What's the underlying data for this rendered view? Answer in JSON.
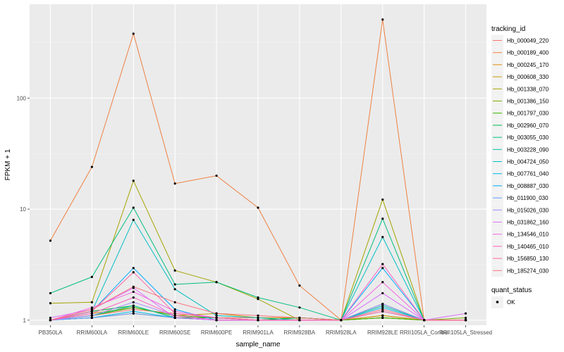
{
  "chart_data": {
    "type": "line",
    "xlabel": "sample_name",
    "ylabel": "FPKM + 1",
    "y_scale": "log10",
    "ylim": [
      0.9,
      700
    ],
    "yticks": [
      1,
      10,
      100
    ],
    "ytick_labels": [
      "1",
      "10",
      "100"
    ],
    "grid": true,
    "legend_position": "right",
    "categories": [
      "PB350LA",
      "RRIM600LA",
      "RRIM600LE",
      "RRIM600SE",
      "RRIM600PE",
      "RRIM901LA",
      "RRIM928BA",
      "RRIM928LA",
      "RRIM928LE",
      "RRII105LA_Control",
      "RRII105LA_Stressed"
    ],
    "legend_title": "tracking_id",
    "series": [
      {
        "name": "Hb_000049_220",
        "color": "#F8766D",
        "values": [
          1.0,
          1.1,
          1.25,
          1.15,
          1.05,
          1.05,
          1.05,
          1.0,
          1.1,
          1.0,
          1.0
        ]
      },
      {
        "name": "Hb_000189_400",
        "color": "#EE8042",
        "values": [
          5.2,
          24,
          380,
          17,
          20,
          10.3,
          2.05,
          1.0,
          510,
          1.0,
          1.0
        ]
      },
      {
        "name": "Hb_000245_170",
        "color": "#DE8C00",
        "values": [
          1.0,
          1.05,
          1.15,
          1.05,
          1.05,
          1.0,
          1.05,
          1.0,
          1.05,
          1.0,
          1.0
        ]
      },
      {
        "name": "Hb_000608_330",
        "color": "#C49A00",
        "values": [
          1.0,
          1.15,
          1.3,
          1.1,
          1.15,
          1.05,
          1.05,
          1.0,
          1.1,
          1.0,
          1.0
        ]
      },
      {
        "name": "Hb_001338_070",
        "color": "#A3A500",
        "values": [
          1.42,
          1.45,
          18,
          2.8,
          2.2,
          1.55,
          1.0,
          1.0,
          12.2,
          1.0,
          1.0
        ]
      },
      {
        "name": "Hb_001386_150",
        "color": "#7CAE00",
        "values": [
          1.0,
          1.2,
          1.35,
          1.05,
          1.05,
          1.0,
          1.0,
          1.0,
          1.05,
          1.0,
          1.05
        ]
      },
      {
        "name": "Hb_001797_030",
        "color": "#39B600",
        "values": [
          1.0,
          1.1,
          1.3,
          1.1,
          1.05,
          1.0,
          1.05,
          1.0,
          1.05,
          1.0,
          1.0
        ]
      },
      {
        "name": "Hb_002960_070",
        "color": "#00BB4E",
        "values": [
          1.0,
          1.2,
          1.35,
          1.05,
          1.05,
          1.0,
          1.05,
          1.0,
          1.4,
          1.0,
          1.0
        ]
      },
      {
        "name": "Hb_003055_030",
        "color": "#00BF7D",
        "values": [
          1.75,
          2.45,
          10.3,
          2.1,
          2.2,
          1.6,
          1.3,
          1.0,
          8.2,
          1.0,
          1.0
        ]
      },
      {
        "name": "Hb_003228_090",
        "color": "#00C1A3",
        "values": [
          1.0,
          1.1,
          1.35,
          1.05,
          1.0,
          1.0,
          1.0,
          1.0,
          1.35,
          1.0,
          1.0
        ]
      },
      {
        "name": "Hb_004724_050",
        "color": "#00BFC4",
        "values": [
          1.0,
          1.2,
          8.0,
          1.9,
          1.1,
          1.05,
          1.0,
          1.0,
          5.6,
          1.0,
          1.0
        ]
      },
      {
        "name": "Hb_007761_040",
        "color": "#00B8E5",
        "values": [
          1.0,
          1.05,
          1.2,
          1.05,
          1.0,
          1.0,
          1.0,
          1.0,
          1.3,
          1.0,
          1.0
        ]
      },
      {
        "name": "Hb_008887_030",
        "color": "#00ABFD",
        "values": [
          1.0,
          1.2,
          2.95,
          1.25,
          1.0,
          1.0,
          1.0,
          1.0,
          2.95,
          1.0,
          1.0
        ]
      },
      {
        "name": "Hb_011900_030",
        "color": "#619CFF",
        "values": [
          1.0,
          1.05,
          1.15,
          1.05,
          1.0,
          1.0,
          1.0,
          1.0,
          1.2,
          1.0,
          1.0
        ]
      },
      {
        "name": "Hb_015026_030",
        "color": "#A58AFF",
        "values": [
          1.0,
          1.1,
          1.45,
          1.1,
          1.0,
          1.0,
          1.0,
          1.0,
          1.4,
          1.0,
          1.0
        ]
      },
      {
        "name": "Hb_031862_160",
        "color": "#DB72FB",
        "values": [
          1.05,
          1.25,
          1.95,
          1.05,
          1.0,
          1.0,
          1.0,
          1.0,
          1.75,
          1.0,
          1.15
        ]
      },
      {
        "name": "Hb_134546_010",
        "color": "#F564E3",
        "values": [
          1.0,
          1.3,
          1.8,
          1.2,
          1.05,
          1.0,
          1.0,
          1.0,
          2.2,
          1.0,
          1.0
        ]
      },
      {
        "name": "Hb_140465_010",
        "color": "#FF61C3",
        "values": [
          1.0,
          1.15,
          1.6,
          1.1,
          1.0,
          1.0,
          1.0,
          1.0,
          3.2,
          1.0,
          1.0
        ]
      },
      {
        "name": "Hb_156850_130",
        "color": "#FF67A4",
        "values": [
          1.0,
          1.2,
          2.7,
          1.15,
          1.05,
          1.0,
          1.0,
          1.0,
          1.2,
          1.0,
          1.0
        ]
      },
      {
        "name": "Hb_185274_030",
        "color": "#FC717F",
        "values": [
          1.0,
          1.25,
          2.0,
          1.45,
          1.15,
          1.1,
          1.05,
          1.0,
          1.25,
          1.0,
          1.0
        ]
      }
    ],
    "legend2": {
      "title": "quant_status",
      "items": [
        "OK"
      ]
    }
  }
}
